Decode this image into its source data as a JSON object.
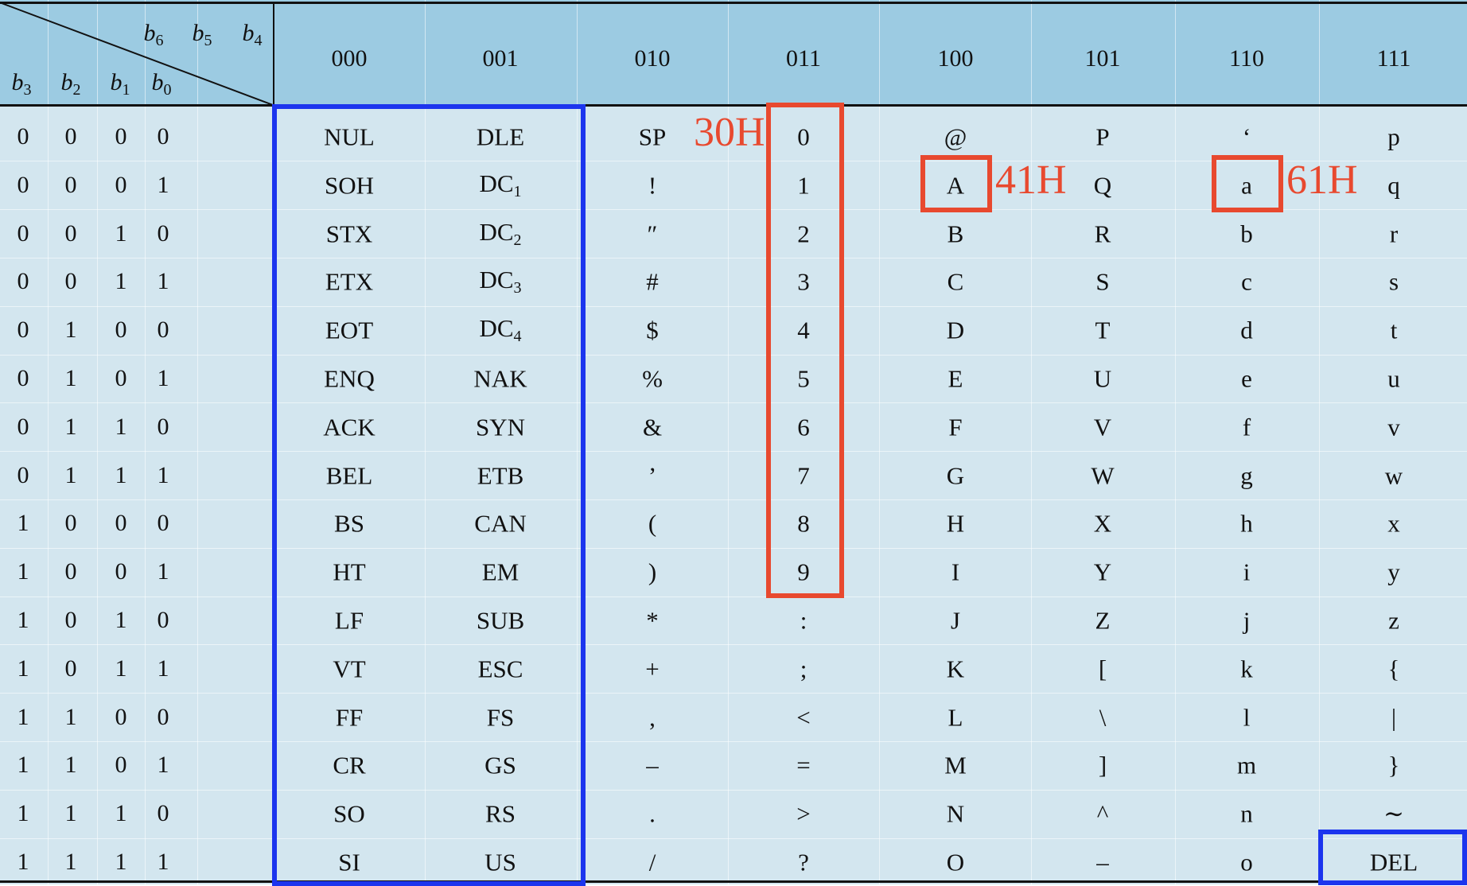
{
  "header": {
    "high_bits": [
      "b6",
      "b5",
      "b4"
    ],
    "low_bits": [
      "b3",
      "b2",
      "b1",
      "b0"
    ],
    "columns": [
      "000",
      "001",
      "010",
      "011",
      "100",
      "101",
      "110",
      "111"
    ]
  },
  "rows": [
    {
      "bits": [
        "0",
        "0",
        "0",
        "0"
      ],
      "chars": [
        "NUL",
        "DLE",
        "SP",
        "0",
        "@",
        "P",
        "‘",
        "p"
      ]
    },
    {
      "bits": [
        "0",
        "0",
        "0",
        "1"
      ],
      "chars": [
        "SOH",
        "DC1",
        "!",
        "1",
        "A",
        "Q",
        "a",
        "q"
      ]
    },
    {
      "bits": [
        "0",
        "0",
        "1",
        "0"
      ],
      "chars": [
        "STX",
        "DC2",
        "″",
        "2",
        "B",
        "R",
        "b",
        "r"
      ]
    },
    {
      "bits": [
        "0",
        "0",
        "1",
        "1"
      ],
      "chars": [
        "ETX",
        "DC3",
        "#",
        "3",
        "C",
        "S",
        "c",
        "s"
      ]
    },
    {
      "bits": [
        "0",
        "1",
        "0",
        "0"
      ],
      "chars": [
        "EOT",
        "DC4",
        "$",
        "4",
        "D",
        "T",
        "d",
        "t"
      ]
    },
    {
      "bits": [
        "0",
        "1",
        "0",
        "1"
      ],
      "chars": [
        "ENQ",
        "NAK",
        "%",
        "5",
        "E",
        "U",
        "e",
        "u"
      ]
    },
    {
      "bits": [
        "0",
        "1",
        "1",
        "0"
      ],
      "chars": [
        "ACK",
        "SYN",
        "&",
        "6",
        "F",
        "V",
        "f",
        "v"
      ]
    },
    {
      "bits": [
        "0",
        "1",
        "1",
        "1"
      ],
      "chars": [
        "BEL",
        "ETB",
        "’",
        "7",
        "G",
        "W",
        "g",
        "w"
      ]
    },
    {
      "bits": [
        "1",
        "0",
        "0",
        "0"
      ],
      "chars": [
        "BS",
        "CAN",
        "(",
        "8",
        "H",
        "X",
        "h",
        "x"
      ]
    },
    {
      "bits": [
        "1",
        "0",
        "0",
        "1"
      ],
      "chars": [
        "HT",
        "EM",
        ")",
        "9",
        "I",
        "Y",
        "i",
        "y"
      ]
    },
    {
      "bits": [
        "1",
        "0",
        "1",
        "0"
      ],
      "chars": [
        "LF",
        "SUB",
        "*",
        ":",
        "J",
        "Z",
        "j",
        "z"
      ]
    },
    {
      "bits": [
        "1",
        "0",
        "1",
        "1"
      ],
      "chars": [
        "VT",
        "ESC",
        "+",
        ";",
        "K",
        "[",
        "k",
        "{"
      ]
    },
    {
      "bits": [
        "1",
        "1",
        "0",
        "0"
      ],
      "chars": [
        "FF",
        "FS",
        ",",
        "<",
        "L",
        "\\",
        "l",
        "|"
      ]
    },
    {
      "bits": [
        "1",
        "1",
        "0",
        "1"
      ],
      "chars": [
        "CR",
        "GS",
        "–",
        "=",
        "M",
        "]",
        "m",
        "}"
      ]
    },
    {
      "bits": [
        "1",
        "1",
        "1",
        "0"
      ],
      "chars": [
        "SO",
        "RS",
        ".",
        ">",
        "N",
        "^",
        "n",
        "∼"
      ]
    },
    {
      "bits": [
        "1",
        "1",
        "1",
        "1"
      ],
      "chars": [
        "SI",
        "US",
        "/",
        "?",
        "O",
        "–",
        "o",
        "DEL"
      ]
    }
  ],
  "annotations": {
    "digit_zero_hex": "30H",
    "upper_a_hex": "41H",
    "lower_a_hex": "61H"
  },
  "colors": {
    "header_band": "#9ccbe2",
    "body_band": "#d3e6ef",
    "highlight_red": "#e8492f",
    "highlight_blue": "#1c35ee"
  }
}
